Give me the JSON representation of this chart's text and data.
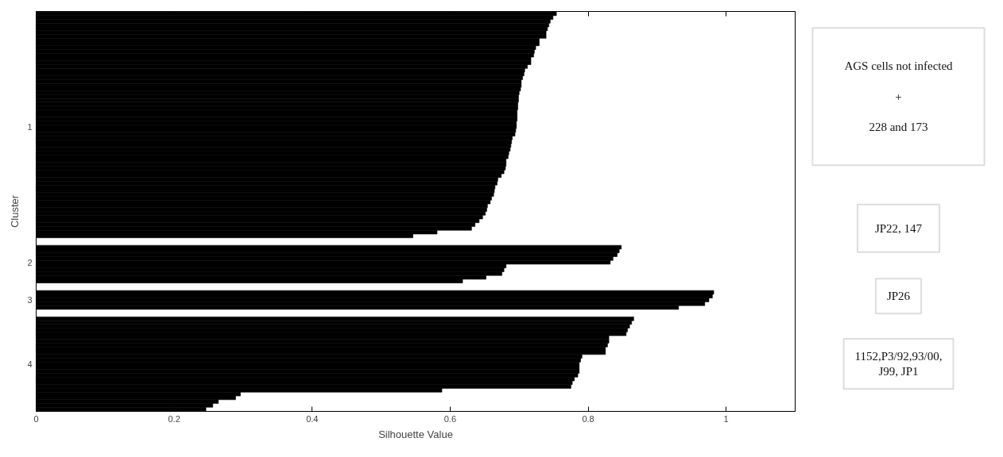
{
  "chart_data": {
    "type": "bar",
    "orientation": "horizontal",
    "xlabel": "Silhouette Value",
    "ylabel": "Cluster",
    "categories": [
      null,
      null,
      null,
      null,
      null,
      null,
      null,
      null,
      null,
      null,
      null,
      null,
      null,
      null,
      null,
      null,
      null,
      null,
      null,
      null,
      null,
      null,
      null,
      null,
      null,
      null,
      null,
      null,
      null,
      null,
      "1",
      null,
      null,
      null,
      null,
      null,
      null,
      null,
      null,
      null,
      null,
      null,
      null,
      null,
      null,
      null,
      null,
      null,
      null,
      null,
      null,
      null,
      null,
      null,
      null,
      null,
      null,
      null,
      null,
      null,
      null,
      null,
      null,
      null,
      null,
      null,
      "2",
      null,
      null,
      null,
      null,
      null,
      null,
      null,
      null,
      null,
      "3",
      null,
      null,
      null,
      null,
      null,
      null,
      null,
      null,
      null,
      null,
      null,
      null,
      null,
      null,
      null,
      null,
      "4",
      null,
      null,
      null,
      null,
      null,
      null,
      null,
      null,
      null,
      null,
      null,
      null
    ],
    "values": [
      0.754,
      0.749,
      0.745,
      0.743,
      0.741,
      0.739,
      0.739,
      0.729,
      0.729,
      0.724,
      0.722,
      0.721,
      0.717,
      0.717,
      0.712,
      0.708,
      0.707,
      0.705,
      0.703,
      0.703,
      0.702,
      0.7,
      0.699,
      0.699,
      0.698,
      0.698,
      0.697,
      0.697,
      0.697,
      0.696,
      0.696,
      0.695,
      0.694,
      0.69,
      0.689,
      0.688,
      0.687,
      0.685,
      0.684,
      0.681,
      0.681,
      0.68,
      0.678,
      0.674,
      0.669,
      0.668,
      0.665,
      0.664,
      0.663,
      0.66,
      0.658,
      0.654,
      0.653,
      0.651,
      0.647,
      0.642,
      0.636,
      0.631,
      0.581,
      0.546,
      null,
      null,
      0.848,
      0.845,
      0.842,
      0.836,
      0.832,
      0.681,
      0.678,
      0.675,
      0.652,
      0.618,
      null,
      null,
      0.982,
      0.98,
      0.975,
      0.969,
      0.931,
      null,
      null,
      0.866,
      0.863,
      0.86,
      0.857,
      0.855,
      0.83,
      0.83,
      0.828,
      0.825,
      0.825,
      0.791,
      0.789,
      0.787,
      0.787,
      0.787,
      0.785,
      0.78,
      0.777,
      0.775,
      0.588,
      0.296,
      0.289,
      0.264,
      0.256,
      0.246
    ],
    "color": "#000000",
    "xlim": [
      0,
      1.1
    ],
    "xticks": [
      0,
      0.2,
      0.4,
      0.6,
      0.8,
      1
    ],
    "annotations": [
      "AGS cells not infected\n\n+\n\n228 and 173",
      "JP22, 147",
      "JP26",
      "1152,P3/92,93/00,\nJ99, JP1"
    ],
    "grid": false
  }
}
